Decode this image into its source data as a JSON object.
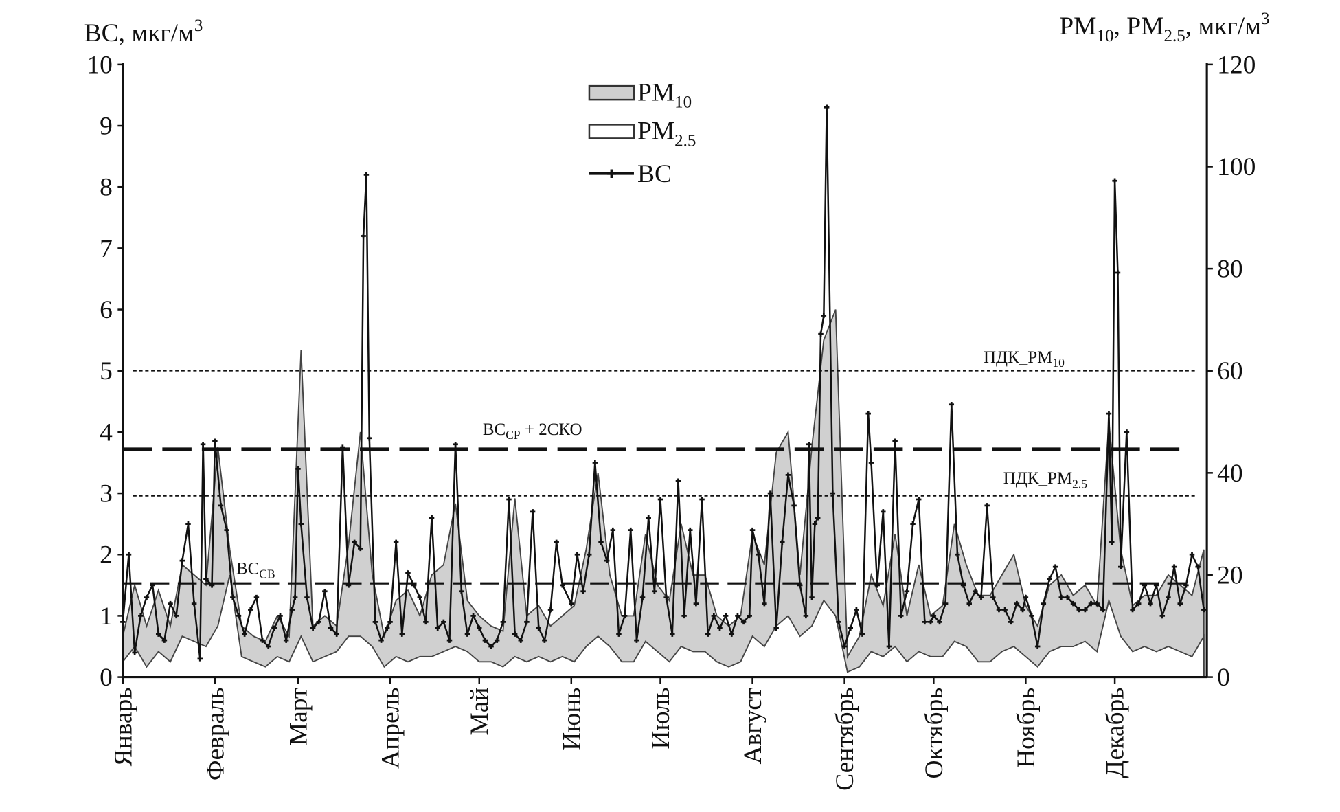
{
  "chart_data": {
    "type": "line",
    "title": "",
    "left_axis": {
      "label_main": "ВС, мкг/м",
      "label_sup": "3",
      "ylim": [
        0,
        10
      ],
      "ticks": [
        "0",
        "1",
        "2",
        "3",
        "4",
        "5",
        "6",
        "7",
        "8",
        "9",
        "10"
      ]
    },
    "right_axis": {
      "label_pm": "PM",
      "label_sub10": "10",
      "label_sep": ", PM",
      "label_sub25": "2.5",
      "label_unit": ", мкг/м",
      "label_sup": "3",
      "ylim": [
        0,
        120
      ],
      "ticks": [
        "0",
        "20",
        "40",
        "60",
        "80",
        "100",
        "120"
      ]
    },
    "xlabel": "",
    "months": [
      "Январь",
      "Февраль",
      "Март",
      "Апрель",
      "Май",
      "Июнь",
      "Июль",
      "Август",
      "Сентябрь",
      "Октябрь",
      "Ноябрь",
      "Декабрь"
    ],
    "month_start_days": [
      1,
      32,
      60,
      91,
      121,
      152,
      182,
      213,
      244,
      274,
      305,
      335
    ],
    "legend": {
      "placement": "top-center",
      "items": [
        {
          "name": "PM",
          "sub": "10",
          "kind": "area-grey"
        },
        {
          "name": "PM",
          "sub": "2.5",
          "kind": "area-white"
        },
        {
          "name": "ВС",
          "sub": "",
          "kind": "line-marker"
        }
      ]
    },
    "reference_lines": [
      {
        "label": "ПДК_PM",
        "sub": "10",
        "axis": "right",
        "value": 60,
        "style": "dotted"
      },
      {
        "label": "ПДК_PM",
        "sub": "2.5",
        "axis": "right",
        "value": 35.5,
        "style": "dotted"
      },
      {
        "label": "ВС",
        "sub": "СР",
        "suffix": " + 2СКО",
        "axis": "left",
        "value": 3.72,
        "style": "long-dash"
      },
      {
        "label": "ВС",
        "sub": "СВ",
        "suffix": "",
        "axis": "left",
        "value": 1.53,
        "style": "dash"
      }
    ],
    "series": [
      {
        "name": "ВС",
        "axis": "left",
        "x": [
          1,
          3,
          5,
          7,
          9,
          11,
          13,
          15,
          17,
          19,
          21,
          23,
          25,
          27,
          28,
          29,
          31,
          32,
          34,
          36,
          38,
          40,
          42,
          44,
          46,
          48,
          50,
          52,
          54,
          56,
          58,
          59,
          60,
          61,
          63,
          65,
          67,
          69,
          71,
          73,
          75,
          77,
          79,
          81,
          82,
          83,
          84,
          86,
          88,
          90,
          91,
          93,
          95,
          97,
          99,
          101,
          103,
          105,
          107,
          109,
          111,
          113,
          115,
          117,
          119,
          121,
          123,
          125,
          127,
          129,
          131,
          133,
          135,
          137,
          139,
          141,
          143,
          145,
          147,
          149,
          152,
          154,
          156,
          158,
          160,
          162,
          164,
          166,
          168,
          170,
          172,
          174,
          176,
          178,
          180,
          182,
          184,
          186,
          188,
          190,
          192,
          194,
          196,
          198,
          200,
          202,
          204,
          206,
          208,
          210,
          212,
          213,
          215,
          217,
          219,
          221,
          223,
          225,
          227,
          229,
          231,
          232,
          233,
          234,
          235,
          236,
          237,
          238,
          240,
          242,
          244,
          246,
          248,
          250,
          252,
          253,
          255,
          257,
          259,
          261,
          263,
          265,
          267,
          269,
          271,
          273,
          274,
          276,
          278,
          280,
          282,
          284,
          286,
          288,
          290,
          292,
          294,
          296,
          298,
          300,
          302,
          304,
          305,
          307,
          309,
          311,
          313,
          315,
          317,
          319,
          321,
          323,
          325,
          327,
          329,
          331,
          333,
          334,
          335,
          336,
          337,
          339,
          341,
          343,
          345,
          347,
          349,
          351,
          353,
          355,
          357,
          359,
          361,
          363,
          365
        ],
        "values": [
          0.9,
          2.0,
          0.4,
          1.0,
          1.3,
          1.5,
          0.7,
          0.6,
          1.2,
          1.0,
          1.9,
          2.5,
          1.2,
          0.3,
          3.8,
          1.6,
          1.5,
          3.85,
          2.8,
          2.4,
          1.3,
          1.0,
          0.7,
          1.1,
          1.3,
          0.6,
          0.5,
          0.8,
          1.0,
          0.6,
          1.1,
          1.3,
          3.4,
          2.5,
          1.3,
          0.8,
          0.9,
          1.4,
          0.8,
          0.7,
          3.75,
          1.5,
          2.2,
          2.1,
          7.2,
          8.2,
          3.9,
          0.9,
          0.6,
          0.8,
          0.9,
          2.2,
          0.7,
          1.7,
          1.5,
          1.3,
          0.9,
          2.6,
          0.8,
          0.9,
          0.6,
          3.8,
          1.4,
          0.7,
          1.0,
          0.8,
          0.6,
          0.5,
          0.6,
          0.9,
          2.9,
          0.7,
          0.6,
          0.9,
          2.7,
          0.8,
          0.6,
          1.1,
          2.2,
          1.5,
          1.2,
          2.0,
          1.4,
          2.0,
          3.5,
          2.2,
          1.9,
          2.4,
          0.7,
          1.0,
          2.4,
          0.6,
          1.3,
          2.6,
          1.4,
          2.9,
          1.3,
          0.7,
          3.2,
          1.0,
          2.4,
          1.2,
          2.9,
          0.7,
          1.0,
          0.8,
          1.0,
          0.7,
          1.0,
          0.9,
          1.0,
          2.4,
          2.0,
          1.2,
          3.0,
          0.8,
          2.2,
          3.3,
          2.8,
          1.5,
          1.0,
          3.8,
          1.3,
          2.5,
          2.6,
          5.6,
          5.9,
          9.3,
          3.0,
          0.9,
          0.5,
          0.8,
          1.1,
          0.7,
          4.3,
          3.5,
          1.5,
          2.7,
          0.5,
          3.85,
          1.0,
          1.4,
          2.5,
          2.9,
          0.9,
          0.9,
          1.0,
          0.9,
          1.2,
          4.45,
          2.0,
          1.5,
          1.2,
          1.4,
          1.3,
          2.8,
          1.3,
          1.1,
          1.1,
          0.9,
          1.2,
          1.1,
          1.3,
          1.0,
          0.5,
          1.2,
          1.6,
          1.8,
          1.3,
          1.3,
          1.2,
          1.1,
          1.1,
          1.2,
          1.2,
          1.1,
          4.3,
          2.2,
          8.1,
          6.6,
          1.8,
          4.0,
          1.1,
          1.2,
          1.5,
          1.2,
          1.5,
          1.0,
          1.3,
          1.8,
          1.2,
          1.5,
          2.0,
          1.8,
          1.1
        ]
      },
      {
        "name": "PM10",
        "axis": "right",
        "x": [
          1,
          5,
          9,
          13,
          17,
          21,
          25,
          29,
          33,
          37,
          41,
          45,
          49,
          53,
          57,
          61,
          65,
          69,
          73,
          77,
          81,
          85,
          89,
          93,
          97,
          101,
          105,
          109,
          113,
          117,
          121,
          125,
          129,
          133,
          137,
          141,
          145,
          149,
          153,
          157,
          161,
          165,
          169,
          173,
          177,
          181,
          185,
          189,
          193,
          197,
          201,
          205,
          209,
          213,
          217,
          221,
          225,
          229,
          233,
          237,
          241,
          245,
          249,
          253,
          257,
          261,
          265,
          269,
          273,
          277,
          281,
          285,
          289,
          293,
          297,
          301,
          305,
          309,
          313,
          317,
          321,
          325,
          329,
          333,
          337,
          341,
          345,
          349,
          353,
          357,
          361,
          365
        ],
        "values": [
          8,
          18,
          10,
          17,
          10,
          22,
          20,
          18,
          45,
          25,
          10,
          8,
          7,
          12,
          8,
          64,
          10,
          12,
          10,
          26,
          48,
          20,
          8,
          15,
          17,
          12,
          20,
          22,
          34,
          15,
          12,
          10,
          9,
          35,
          12,
          14,
          10,
          12,
          14,
          25,
          40,
          20,
          12,
          12,
          28,
          18,
          15,
          30,
          20,
          20,
          12,
          10,
          12,
          28,
          22,
          44,
          48,
          20,
          45,
          66,
          72,
          4,
          8,
          20,
          14,
          28,
          12,
          22,
          12,
          14,
          30,
          22,
          16,
          16,
          20,
          24,
          14,
          10,
          18,
          20,
          16,
          18,
          14,
          50,
          25,
          14,
          16,
          16,
          20,
          18,
          16,
          25
        ]
      },
      {
        "name": "PM2.5",
        "axis": "right",
        "x": [
          1,
          5,
          9,
          13,
          17,
          21,
          25,
          29,
          33,
          37,
          41,
          45,
          49,
          53,
          57,
          61,
          65,
          69,
          73,
          77,
          81,
          85,
          89,
          93,
          97,
          101,
          105,
          109,
          113,
          117,
          121,
          125,
          129,
          133,
          137,
          141,
          145,
          149,
          153,
          157,
          161,
          165,
          169,
          173,
          177,
          181,
          185,
          189,
          193,
          197,
          201,
          205,
          209,
          213,
          217,
          221,
          225,
          229,
          233,
          237,
          241,
          245,
          249,
          253,
          257,
          261,
          265,
          269,
          273,
          277,
          281,
          285,
          289,
          293,
          297,
          301,
          305,
          309,
          313,
          317,
          321,
          325,
          329,
          333,
          337,
          341,
          345,
          349,
          353,
          357,
          361,
          365
        ],
        "values": [
          3,
          6,
          2,
          5,
          3,
          8,
          7,
          6,
          10,
          20,
          4,
          3,
          2,
          4,
          3,
          8,
          3,
          4,
          5,
          8,
          8,
          6,
          2,
          4,
          3,
          4,
          4,
          5,
          6,
          5,
          3,
          3,
          2,
          4,
          3,
          4,
          3,
          4,
          3,
          6,
          8,
          6,
          3,
          3,
          7,
          5,
          3,
          6,
          5,
          5,
          3,
          2,
          3,
          8,
          6,
          10,
          12,
          8,
          10,
          15,
          12,
          1,
          2,
          5,
          4,
          6,
          3,
          5,
          4,
          4,
          7,
          6,
          3,
          3,
          5,
          6,
          4,
          2,
          5,
          6,
          6,
          7,
          5,
          15,
          8,
          5,
          6,
          5,
          6,
          5,
          4,
          8
        ]
      }
    ]
  }
}
